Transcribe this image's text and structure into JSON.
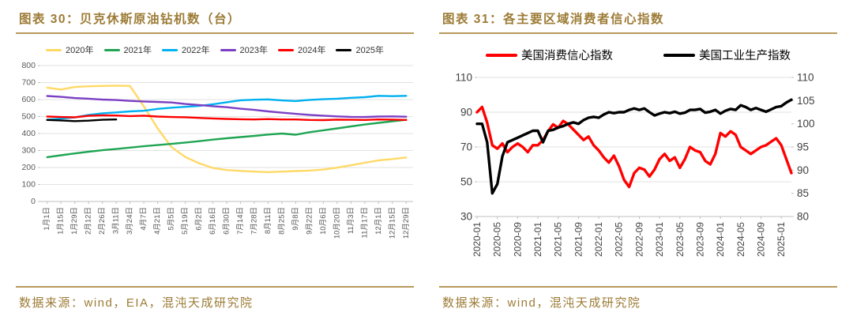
{
  "left_panel": {
    "title": "图表 30：贝克休斯原油钻机数（台）",
    "source": "数据来源：wind，EIA，混沌天成研究院"
  },
  "right_panel": {
    "title": "图表 31：各主要区域消费者信心指数",
    "source": "数据来源：wind，混沌天成研究院"
  },
  "theme": {
    "title_gold": "#9C7B35",
    "rule_gold": "#B7995B",
    "grid_line": "#E2E2E2",
    "axis_line": "#BFBFBF",
    "axis_text": "#595959"
  },
  "chart_data": [
    {
      "type": "line",
      "title": "贝克休斯原油钻机数（台）",
      "ylabel": "台",
      "ylim": [
        0,
        800
      ],
      "yticks": [
        800,
        700,
        600,
        500,
        400,
        300,
        200,
        100,
        0
      ],
      "grid": true,
      "legend_position": "top",
      "categories": [
        "1月1日",
        "1月15日",
        "1月29日",
        "2月12日",
        "2月26日",
        "3月11日",
        "3月24日",
        "4月7日",
        "4月21日",
        "5月5日",
        "5月19日",
        "6月2日",
        "6月16日",
        "6月30日",
        "7月14日",
        "7月28日",
        "8月11日",
        "8月25日",
        "9月8日",
        "9月22日",
        "10月6日",
        "10月20日",
        "11月3日",
        "11月17日",
        "12月1日",
        "12月15日",
        "12月29日"
      ],
      "series": [
        {
          "name": "2020年",
          "color": "#FFD966",
          "values": [
            670,
            659,
            674,
            678,
            680,
            682,
            680,
            560,
            430,
            320,
            262,
            225,
            197,
            185,
            180,
            176,
            173,
            176,
            179,
            182,
            188,
            199,
            213,
            228,
            242,
            250,
            259
          ]
        },
        {
          "name": "2021年",
          "color": "#1FA553",
          "values": [
            261,
            272,
            283,
            293,
            302,
            309,
            317,
            325,
            332,
            339,
            347,
            355,
            364,
            372,
            379,
            386,
            394,
            400,
            393,
            408,
            419,
            430,
            442,
            453,
            463,
            472,
            481
          ]
        },
        {
          "name": "2022年",
          "color": "#00B0F0",
          "values": [
            481,
            488,
            495,
            510,
            519,
            524,
            530,
            534,
            545,
            552,
            557,
            563,
            572,
            584,
            596,
            599,
            601,
            595,
            591,
            598,
            602,
            605,
            610,
            614,
            622,
            620,
            622
          ]
        },
        {
          "name": "2023年",
          "color": "#7B3FC4",
          "values": [
            621,
            616,
            609,
            605,
            600,
            597,
            592,
            589,
            586,
            583,
            574,
            568,
            561,
            555,
            546,
            539,
            530,
            523,
            516,
            510,
            505,
            501,
            498,
            497,
            500,
            501,
            499
          ]
        },
        {
          "name": "2024年",
          "color": "#FF0000",
          "values": [
            500,
            497,
            496,
            504,
            507,
            506,
            503,
            505,
            500,
            497,
            496,
            492,
            489,
            486,
            484,
            483,
            485,
            483,
            483,
            480,
            479,
            482,
            481,
            480,
            483,
            482,
            480
          ]
        },
        {
          "name": "2025年",
          "color": "#000000",
          "values": [
            480,
            477,
            473,
            476,
            481,
            483
          ]
        }
      ]
    },
    {
      "type": "line",
      "title": "各主要区域消费者信心指数",
      "x_labels": [
        "2020-01",
        "2020-05",
        "2020-09",
        "2021-01",
        "2021-05",
        "2021-09",
        "2022-01",
        "2022-05",
        "2022-09",
        "2023-01",
        "2023-05",
        "2023-09",
        "2024-01",
        "2024-05",
        "2024-09",
        "2025-01"
      ],
      "months_per_label": 4,
      "n_points": 63,
      "left_ylim": [
        30,
        110
      ],
      "left_yticks": [
        110,
        90,
        70,
        50,
        30
      ],
      "right_ylim": [
        80,
        110
      ],
      "right_yticks": [
        110,
        105,
        100,
        95,
        90,
        85,
        80
      ],
      "grid": true,
      "legend_position": "top",
      "series": [
        {
          "name": "美国消费信心指数",
          "color": "#FF0000",
          "axis": "left",
          "values": [
            90,
            93,
            84,
            71,
            69,
            72,
            67,
            70,
            72,
            70,
            67,
            71,
            71,
            74,
            79,
            83,
            81,
            85,
            83,
            80,
            77,
            74,
            76,
            71,
            68,
            64,
            61,
            65,
            59,
            51,
            47,
            55,
            58,
            57,
            53,
            57,
            63,
            66,
            62,
            64,
            58,
            63,
            70,
            68,
            67,
            62,
            60,
            66,
            78,
            76,
            79,
            77,
            70,
            68,
            66,
            68,
            70,
            71,
            73,
            75,
            71,
            63,
            55
          ]
        },
        {
          "name": "美国工业生产指数",
          "color": "#000000",
          "axis": "right",
          "values": [
            100,
            100,
            96,
            85,
            87,
            93,
            96,
            96.5,
            97,
            97.5,
            98,
            98.5,
            98.5,
            96,
            98.5,
            98.7,
            99.2,
            99.5,
            100,
            100.3,
            100,
            100.8,
            101.3,
            101.5,
            101.3,
            102,
            102.5,
            102.3,
            102.5,
            102.5,
            103,
            103.3,
            103,
            103.3,
            102.5,
            101.8,
            102.2,
            102.5,
            102.3,
            102.6,
            102.2,
            102.4,
            103,
            103,
            103.2,
            102.4,
            102.6,
            103,
            102.2,
            102.8,
            103.2,
            103,
            104,
            103.6,
            103,
            103.4,
            103,
            102.6,
            103.1,
            103.6,
            103.8,
            104.6,
            105.2
          ]
        }
      ]
    }
  ]
}
